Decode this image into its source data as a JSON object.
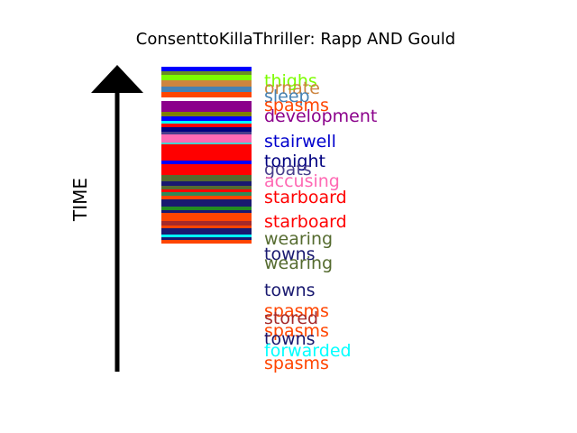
{
  "title": "ConsenttoKillaThriller: Rapp AND Gould",
  "axis_label": "TIME",
  "bands": [
    {
      "color": "#0000ff"
    },
    {
      "color": "#6b8e23"
    },
    {
      "color": "#7cfc00"
    },
    {
      "color": "#cd853f"
    },
    {
      "color": "#4682b4"
    },
    {
      "color": "#ff4500"
    },
    {
      "color": "#ffffff"
    },
    {
      "color": "#8b008b"
    },
    {
      "color": "#808000"
    },
    {
      "color": "#0000ff"
    },
    {
      "color": "#00ffff"
    },
    {
      "color": "#ff0000"
    },
    {
      "color": "#000080"
    },
    {
      "color": "#483d8b"
    },
    {
      "color": "#ff69b4"
    },
    {
      "color": "#48d1cc"
    },
    {
      "color": "#ff0000"
    },
    {
      "color": "#0000ff"
    },
    {
      "color": "#ff0000"
    },
    {
      "color": "#556b2f"
    },
    {
      "color": "#191970"
    },
    {
      "color": "#556b2f"
    },
    {
      "color": "#ff0000"
    },
    {
      "color": "#2e8b57"
    },
    {
      "color": "#ff4500"
    },
    {
      "color": "#191970"
    },
    {
      "color": "#228b22"
    },
    {
      "color": "#191970"
    },
    {
      "color": "#ff4500"
    },
    {
      "color": "#a52a2a"
    },
    {
      "color": "#ff4500"
    },
    {
      "color": "#191970"
    },
    {
      "color": "#00ffff"
    },
    {
      "color": "#191970"
    },
    {
      "color": "#ff4500"
    }
  ],
  "labels": [
    {
      "text": "thighs",
      "color": "#7cfc00"
    },
    {
      "text": "ornate",
      "color": "#cd853f"
    },
    {
      "text": "sleep",
      "color": "#4682b4"
    },
    {
      "text": "spasms",
      "color": "#ff4500"
    },
    {
      "text": "development",
      "color": "#8b008b"
    },
    {
      "text": "stairwell",
      "color": "#0000cd"
    },
    {
      "text": "tonight",
      "color": "#000080"
    },
    {
      "text": "goats",
      "color": "#483d8b"
    },
    {
      "text": "accusing",
      "color": "#ff69b4"
    },
    {
      "text": "starboard",
      "color": "#ff0000"
    },
    {
      "text": "starboard",
      "color": "#ff0000"
    },
    {
      "text": "wearing",
      "color": "#556b2f"
    },
    {
      "text": "towns",
      "color": "#191970"
    },
    {
      "text": "wearing",
      "color": "#556b2f"
    },
    {
      "text": "towns",
      "color": "#191970"
    },
    {
      "text": "spasms",
      "color": "#ff4500"
    },
    {
      "text": "stored",
      "color": "#a52a2a"
    },
    {
      "text": "spasms",
      "color": "#ff4500"
    },
    {
      "text": "towns",
      "color": "#191970"
    },
    {
      "text": "forwarded",
      "color": "#00ffff"
    },
    {
      "text": "spasms",
      "color": "#ff4500"
    }
  ]
}
